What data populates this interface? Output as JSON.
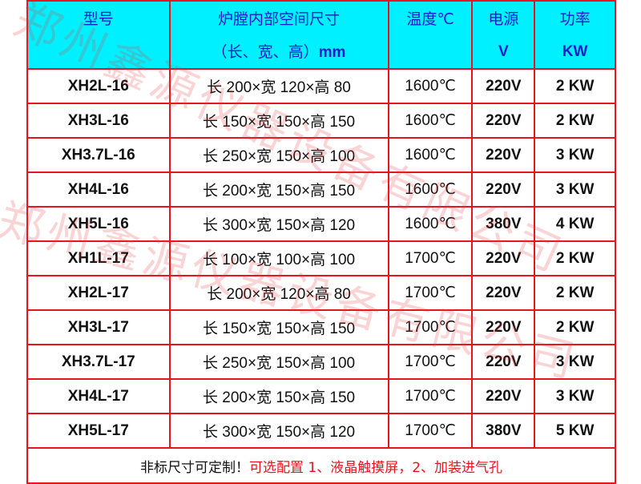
{
  "header": {
    "model": "型号",
    "size_line1": "炉膛内部空间尺寸",
    "size_line2a": "（长、宽、高）",
    "size_line2b": "mm",
    "temp": "温度℃",
    "voltage_line1": "电源",
    "voltage_line2": "V",
    "power_line1": "功率",
    "power_line2": "KW"
  },
  "rows": [
    {
      "model": "XH2L-16",
      "size": "长 200×宽 120×高 80",
      "temp": "1600℃",
      "voltage": "220V",
      "power": "2 KW"
    },
    {
      "model": "XH3L-16",
      "size": "长 150×宽 150×高 150",
      "temp": "1600℃",
      "voltage": "220V",
      "power": "2 KW"
    },
    {
      "model": "XH3.7L-16",
      "size": "长 250×宽 150×高 100",
      "temp": "1600℃",
      "voltage": "220V",
      "power": "3 KW"
    },
    {
      "model": "XH4L-16",
      "size": "长 200×宽 150×高 150",
      "temp": "1600℃",
      "voltage": "220V",
      "power": "3 KW"
    },
    {
      "model": "XH5L-16",
      "size": "长 300×宽 150×高 120",
      "temp": "1600℃",
      "voltage": "380V",
      "power": "4 KW"
    },
    {
      "model": "XH1L-17",
      "size": "长 100×宽 100×高 100",
      "temp": "1700℃",
      "voltage": "220V",
      "power": "2 KW"
    },
    {
      "model": "XH2L-17",
      "size": "长 200×宽 120×高 80",
      "temp": "1700℃",
      "voltage": "220V",
      "power": "2 KW"
    },
    {
      "model": "XH3L-17",
      "size": "长 150×宽 150×高 150",
      "temp": "1700℃",
      "voltage": "220V",
      "power": "2 KW"
    },
    {
      "model": "XH3.7L-17",
      "size": "长 250×宽 150×高 100",
      "temp": "1700℃",
      "voltage": "220V",
      "power": "3 KW"
    },
    {
      "model": "XH4L-17",
      "size": "长 200×宽 150×高 150",
      "temp": "1700℃",
      "voltage": "220V",
      "power": "3 KW"
    },
    {
      "model": "XH5L-17",
      "size": "长 300×宽 150×高 120",
      "temp": "1700℃",
      "voltage": "380V",
      "power": "5 KW"
    }
  ],
  "footer": {
    "note": "非标尺寸可定制！",
    "options": "可选配置 1、液晶触摸屏，2、加装进气孔"
  },
  "watermark": "郑州鑫源仪器设备有限公司",
  "colors": {
    "border": "#e8141e",
    "header_bg": "#00f0ff",
    "header_text": "#1a1acd",
    "options_text": "#e8141e"
  }
}
